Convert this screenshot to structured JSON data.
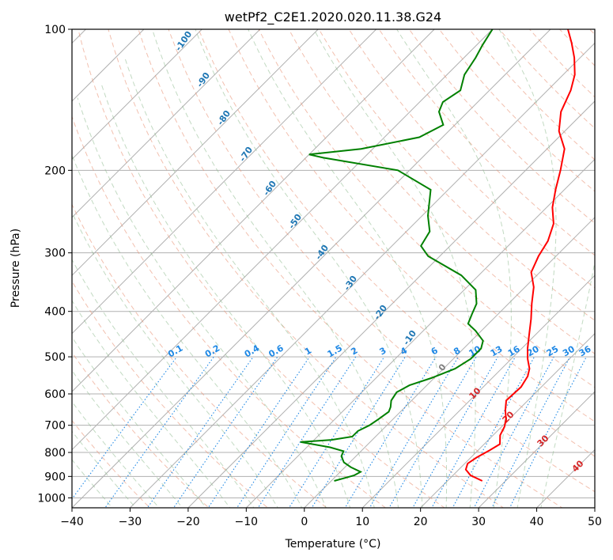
{
  "chart_data": {
    "type": "line",
    "title": "wetPf2_C2E1.2020.020.11.38.G24",
    "xlabel": "Temperature (°C)",
    "ylabel": "Pressure (hPa)",
    "xlim": [
      -40,
      50
    ],
    "ylim": [
      1050,
      100
    ],
    "y_scale": "log",
    "grid": true,
    "xticks": [
      -40,
      -30,
      -20,
      -10,
      0,
      10,
      20,
      30,
      40,
      50
    ],
    "yticks": [
      100,
      200,
      300,
      400,
      500,
      600,
      700,
      800,
      900,
      1000
    ],
    "skew_deg": 45,
    "series": [
      {
        "color": "#ff0000",
        "points": [
          [
            26,
            920
          ],
          [
            23,
            895
          ],
          [
            21.2,
            870
          ],
          [
            20.5,
            845
          ],
          [
            21,
            820
          ],
          [
            22,
            792
          ],
          [
            22.7,
            768
          ],
          [
            21.2,
            735
          ],
          [
            20.5,
            705
          ],
          [
            19.5,
            680
          ],
          [
            17.8,
            650
          ],
          [
            16.3,
            620
          ],
          [
            16.5,
            580
          ],
          [
            15.8,
            550
          ],
          [
            14.8,
            530
          ],
          [
            12.8,
            505
          ],
          [
            11,
            480
          ],
          [
            9,
            450
          ],
          [
            6.5,
            415
          ],
          [
            4,
            385
          ],
          [
            1.5,
            355
          ],
          [
            -1.5,
            330
          ],
          [
            -3,
            305
          ],
          [
            -4,
            283
          ],
          [
            -6,
            260
          ],
          [
            -9,
            240
          ],
          [
            -11.5,
            220
          ],
          [
            -14,
            200
          ],
          [
            -17,
            180
          ],
          [
            -21,
            165
          ],
          [
            -24,
            150
          ],
          [
            -26,
            135
          ],
          [
            -28,
            125
          ],
          [
            -31,
            115
          ],
          [
            -34,
            107
          ],
          [
            -37,
            100
          ]
        ]
      },
      {
        "color": "#008000",
        "points": [
          [
            0.5,
            920
          ],
          [
            2,
            905
          ],
          [
            3,
            895
          ],
          [
            3.5,
            880
          ],
          [
            1,
            860
          ],
          [
            -1,
            840
          ],
          [
            -2.5,
            815
          ],
          [
            -3,
            795
          ],
          [
            -6,
            780
          ],
          [
            -12,
            760
          ],
          [
            -7,
            752
          ],
          [
            -4,
            740
          ],
          [
            -4,
            720
          ],
          [
            -3,
            700
          ],
          [
            -2.5,
            680
          ],
          [
            -2,
            655
          ],
          [
            -2.5,
            640
          ],
          [
            -3.5,
            620
          ],
          [
            -4,
            595
          ],
          [
            -3,
            575
          ],
          [
            -0.5,
            555
          ],
          [
            2,
            530
          ],
          [
            3,
            505
          ],
          [
            3,
            480
          ],
          [
            2,
            462
          ],
          [
            -1,
            440
          ],
          [
            -3.5,
            425
          ],
          [
            -4.5,
            405
          ],
          [
            -5.5,
            385
          ],
          [
            -8,
            360
          ],
          [
            -13,
            335
          ],
          [
            -22,
            305
          ],
          [
            -25,
            290
          ],
          [
            -26,
            270
          ],
          [
            -29,
            250
          ],
          [
            -33,
            220
          ],
          [
            -42,
            200
          ],
          [
            -57,
            188
          ],
          [
            -60,
            185
          ],
          [
            -52,
            180
          ],
          [
            -44,
            170
          ],
          [
            -42,
            160
          ],
          [
            -45,
            150
          ],
          [
            -46,
            143
          ],
          [
            -45,
            135
          ],
          [
            -47,
            125
          ],
          [
            -48,
            115
          ],
          [
            -49,
            108
          ],
          [
            -50,
            100
          ]
        ]
      }
    ],
    "isotherm_labels": [
      "-100",
      "-90",
      "-80",
      "-70",
      "-60",
      "-50",
      "-40",
      "-30",
      "-20",
      "-10"
    ],
    "isotherm_label_values": [
      -100,
      -90,
      -80,
      -70,
      -60,
      -50,
      -40,
      -30,
      -20,
      -10
    ],
    "zero_label": "0",
    "moist_labels": [
      "10",
      "20",
      "30",
      "40"
    ],
    "moist_label_values": [
      10,
      20,
      30,
      40
    ],
    "mixing_ratio_labels": [
      "0.1",
      "0.2",
      "0.4",
      "0.6",
      "1",
      "1.5",
      "2",
      "3",
      "4",
      "6",
      "8",
      "10",
      "13",
      "16",
      "20",
      "25",
      "30",
      "36"
    ],
    "mixing_ratio_values": [
      0.1,
      0.2,
      0.4,
      0.6,
      1,
      1.5,
      2,
      3,
      4,
      6,
      8,
      10,
      13,
      16,
      20,
      25,
      30,
      36
    ],
    "colors": {
      "temperature": "#ff0000",
      "dewpoint": "#008000",
      "dry_adiabat": "#e9967a",
      "moist_adiabat": "#8fbc8f",
      "mixing_ratio": "#1e88e5",
      "isotherm_label": "#1f77b4",
      "moist_label": "#d62728",
      "grid": "#b0b0b0"
    }
  }
}
